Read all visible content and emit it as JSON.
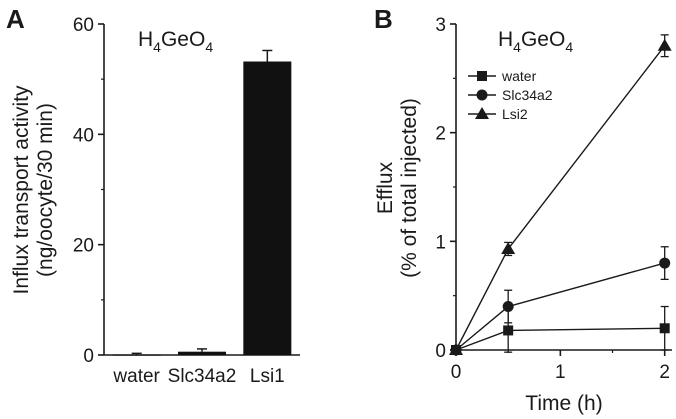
{
  "panels": {
    "a": {
      "letter": "A",
      "formula": {
        "base1": "H",
        "sub1": "4",
        "base2": "GeO",
        "sub2": "4"
      },
      "ylabel_line1": "Influx transport activity",
      "ylabel_line2": "(ng/oocyte/30 min)"
    },
    "b": {
      "letter": "B",
      "formula": {
        "base1": "H",
        "sub1": "4",
        "base2": "GeO",
        "sub2": "4"
      },
      "ylabel_line1": "Efflux",
      "ylabel_line2": "(% of total injected)",
      "xlabel": "Time (h)"
    }
  },
  "chart_data": [
    {
      "type": "bar",
      "panel": "A",
      "categories": [
        "water",
        "Slc34a2",
        "Lsi1"
      ],
      "values": [
        0.1,
        0.6,
        53.2
      ],
      "errors": [
        0.2,
        0.5,
        2.0
      ],
      "ylim": [
        0,
        60
      ],
      "yticks": [
        "0",
        "20",
        "40",
        "60"
      ],
      "ytick_values": [
        0,
        20,
        40,
        60
      ],
      "ylabel": "Influx transport activity (ng/oocyte/30 min)",
      "bar_color": "#111111"
    },
    {
      "type": "line",
      "panel": "B",
      "x": [
        0,
        0.5,
        2
      ],
      "xlim": [
        0,
        2.07
      ],
      "ylim": [
        0,
        3
      ],
      "xticks": [
        "0",
        "1",
        "2"
      ],
      "xtick_values": [
        0,
        1,
        2
      ],
      "yticks": [
        "0",
        "1",
        "2",
        "3"
      ],
      "ytick_values": [
        0,
        1,
        2,
        3
      ],
      "xlabel": "Time (h)",
      "ylabel": "Efflux (% of total injected)",
      "legend_position": "upper-left",
      "series": [
        {
          "name": "water",
          "marker": "square",
          "values": [
            0,
            0.18,
            0.2
          ],
          "errors": [
            0,
            0.2,
            0.2
          ]
        },
        {
          "name": "Slc34a2",
          "marker": "circle",
          "values": [
            0,
            0.4,
            0.8
          ],
          "errors": [
            0,
            0.15,
            0.15
          ]
        },
        {
          "name": "Lsi2",
          "marker": "triangle",
          "values": [
            0,
            0.93,
            2.8
          ],
          "errors": [
            0,
            0.06,
            0.1
          ]
        }
      ]
    }
  ]
}
